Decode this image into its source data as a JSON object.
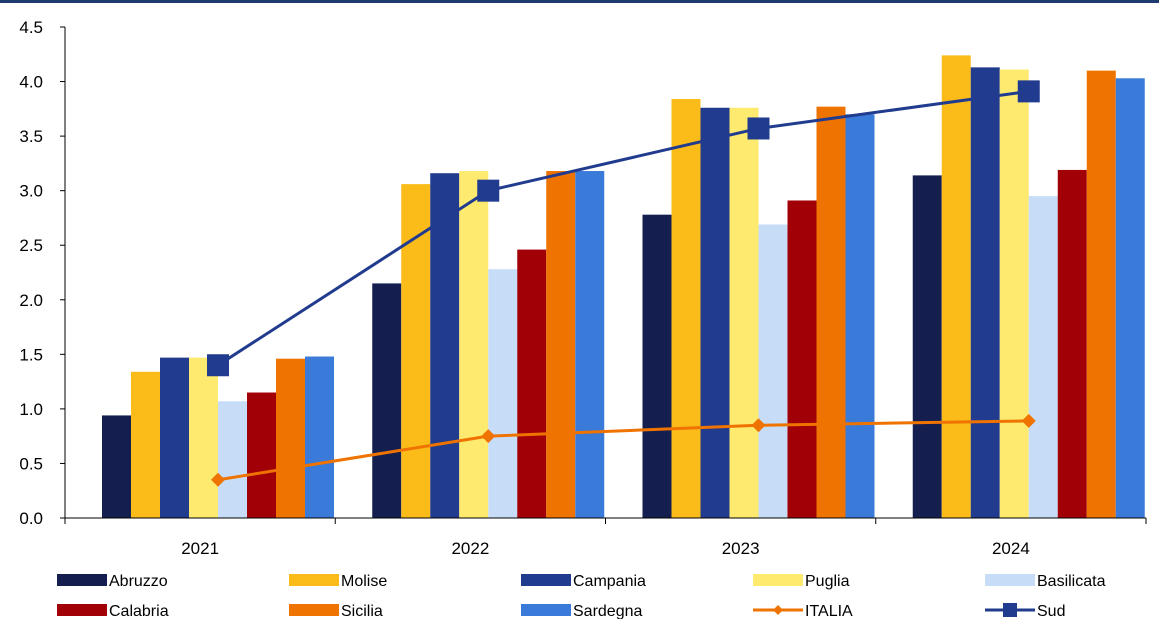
{
  "chart_data": {
    "type": "bar",
    "categories": [
      "2021",
      "2022",
      "2023",
      "2024"
    ],
    "ylim": [
      0,
      4.5
    ],
    "ytick_step": 0.5,
    "yticks": [
      "0.0",
      "0.5",
      "1.0",
      "1.5",
      "2.0",
      "2.5",
      "3.0",
      "3.5",
      "4.0",
      "4.5"
    ],
    "title": "",
    "xlabel": "",
    "ylabel": "",
    "legend_position": "bottom",
    "grid": false,
    "series": [
      {
        "name": "Abruzzo",
        "kind": "bar",
        "color": "#141f4f",
        "values": [
          0.94,
          2.15,
          2.78,
          3.14
        ]
      },
      {
        "name": "Molise",
        "kind": "bar",
        "color": "#fbbc19",
        "values": [
          1.34,
          3.06,
          3.84,
          4.24
        ]
      },
      {
        "name": "Campania",
        "kind": "bar",
        "color": "#213b8f",
        "values": [
          1.47,
          3.16,
          3.76,
          4.13
        ]
      },
      {
        "name": "Puglia",
        "kind": "bar",
        "color": "#fdea6e",
        "values": [
          1.47,
          3.18,
          3.76,
          4.11
        ]
      },
      {
        "name": "Basilicata",
        "kind": "bar",
        "color": "#c7dcf6",
        "values": [
          1.07,
          2.28,
          2.69,
          2.95
        ]
      },
      {
        "name": "Calabria",
        "kind": "bar",
        "color": "#a10006",
        "values": [
          1.15,
          2.46,
          2.91,
          3.19
        ]
      },
      {
        "name": "Sicilia",
        "kind": "bar",
        "color": "#ef7300",
        "values": [
          1.46,
          3.18,
          3.77,
          4.1
        ]
      },
      {
        "name": "Sardegna",
        "kind": "bar",
        "color": "#3a7ad8",
        "values": [
          1.48,
          3.18,
          3.7,
          4.03
        ]
      },
      {
        "name": "ITALIA",
        "kind": "line",
        "marker": "diamond",
        "color": "#ef7300",
        "values": [
          0.35,
          0.75,
          0.85,
          0.89
        ]
      },
      {
        "name": "Sud",
        "kind": "line",
        "marker": "square",
        "color": "#213b8f",
        "values": [
          1.4,
          3.0,
          3.57,
          3.91
        ]
      }
    ]
  }
}
